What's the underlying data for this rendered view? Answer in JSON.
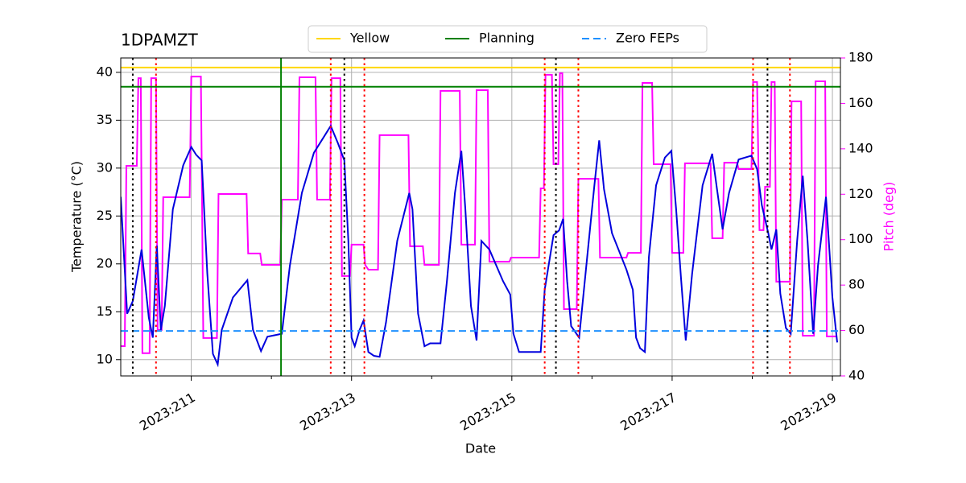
{
  "chart_data": {
    "type": "line",
    "title": "1DPAMZT",
    "xlabel": "Date",
    "ylabel": "Temperature (°C)",
    "y2label": "Pitch (deg)",
    "y2color": "#ff00ff",
    "xlim": [
      210.12,
      219.1
    ],
    "xticks": [
      {
        "value": 211,
        "label": "2023:211"
      },
      {
        "value": 213,
        "label": "2023:213"
      },
      {
        "value": 215,
        "label": "2023:215"
      },
      {
        "value": 217,
        "label": "2023:217"
      },
      {
        "value": 219,
        "label": "2023:219"
      }
    ],
    "xminorticks": [
      212,
      214,
      216,
      218
    ],
    "ylim": [
      8.3,
      41.5
    ],
    "yticks": [
      10,
      15,
      20,
      25,
      30,
      35,
      40
    ],
    "y2lim": [
      40,
      180
    ],
    "y2ticks": [
      40,
      60,
      80,
      100,
      120,
      140,
      160,
      180
    ],
    "grid": true,
    "legend": "top",
    "hlines": [
      {
        "name": "Yellow",
        "color": "#ffd700",
        "value": 40.5,
        "dash": "solid"
      },
      {
        "name": "Planning",
        "color": "#008000",
        "value": 38.5,
        "dash": "solid"
      },
      {
        "name": "Zero FEPs",
        "color": "#1e90ff",
        "value": 13.0,
        "dash": "dashed"
      }
    ],
    "vlines": [
      {
        "x": 212.12,
        "color": "#008000",
        "dash": "solid"
      },
      {
        "x": 210.27,
        "color": "#000000",
        "dash": "dotted"
      },
      {
        "x": 212.91,
        "color": "#000000",
        "dash": "dotted"
      },
      {
        "x": 215.55,
        "color": "#000000",
        "dash": "dotted"
      },
      {
        "x": 218.19,
        "color": "#000000",
        "dash": "dotted"
      },
      {
        "x": 210.56,
        "color": "#ff0000",
        "dash": "dotted"
      },
      {
        "x": 212.74,
        "color": "#ff0000",
        "dash": "dotted"
      },
      {
        "x": 213.16,
        "color": "#ff0000",
        "dash": "dotted"
      },
      {
        "x": 215.41,
        "color": "#ff0000",
        "dash": "dotted"
      },
      {
        "x": 215.83,
        "color": "#ff0000",
        "dash": "dotted"
      },
      {
        "x": 218.01,
        "color": "#ff0000",
        "dash": "dotted"
      },
      {
        "x": 218.47,
        "color": "#ff0000",
        "dash": "dotted"
      }
    ],
    "series": [
      {
        "color": "#ff00ff",
        "axis": "y2",
        "x": [
          210.12,
          210.17,
          210.19,
          210.32,
          210.34,
          210.37,
          210.39,
          210.48,
          210.5,
          210.56,
          210.58,
          210.63,
          210.65,
          210.98,
          211.0,
          211.12,
          211.15,
          211.32,
          211.34,
          211.69,
          211.71,
          211.86,
          211.88,
          212.11,
          212.13,
          212.33,
          212.35,
          212.55,
          212.57,
          212.73,
          212.75,
          212.86,
          212.88,
          212.98,
          213.0,
          213.15,
          213.17,
          213.21,
          213.33,
          213.35,
          213.71,
          213.73,
          213.89,
          213.91,
          214.09,
          214.11,
          214.35,
          214.37,
          214.54,
          214.56,
          214.7,
          214.72,
          214.97,
          214.99,
          215.34,
          215.36,
          215.4,
          215.42,
          215.5,
          215.52,
          215.58,
          215.6,
          215.63,
          215.65,
          215.81,
          215.83,
          216.08,
          216.1,
          216.43,
          216.45,
          216.61,
          216.63,
          216.75,
          216.77,
          216.98,
          217.0,
          217.14,
          217.16,
          217.48,
          217.5,
          217.63,
          217.65,
          217.81,
          217.83,
          217.99,
          218.01,
          218.06,
          218.09,
          218.14,
          218.16,
          218.22,
          218.24,
          218.28,
          218.3,
          218.47,
          218.49,
          218.61,
          218.63,
          218.77,
          218.79,
          218.91,
          218.93,
          219.06
        ],
        "values": [
          53.1,
          53.1,
          132.5,
          132.5,
          171.1,
          171.1,
          50.0,
          50.0,
          171.1,
          171.1,
          60.2,
          60.2,
          118.7,
          118.7,
          171.8,
          171.8,
          56.7,
          56.7,
          120.1,
          120.1,
          93.9,
          93.9,
          88.9,
          88.9,
          117.6,
          117.6,
          171.5,
          171.5,
          117.6,
          117.6,
          171.1,
          171.1,
          84.0,
          84.0,
          97.8,
          97.8,
          88.9,
          86.8,
          86.8,
          146.0,
          146.0,
          97.1,
          97.1,
          88.9,
          88.9,
          165.5,
          165.5,
          97.8,
          97.8,
          165.8,
          165.8,
          90.3,
          90.3,
          92.1,
          92.1,
          122.6,
          122.6,
          172.6,
          172.6,
          133.2,
          133.2,
          173.3,
          173.3,
          69.4,
          69.4,
          126.8,
          126.8,
          92.1,
          92.1,
          94.2,
          94.2,
          169.0,
          169.0,
          133.2,
          133.2,
          94.2,
          94.2,
          133.6,
          133.6,
          100.6,
          100.6,
          133.9,
          133.9,
          131.1,
          131.1,
          169.4,
          169.4,
          104.2,
          104.2,
          123.3,
          123.3,
          169.4,
          169.4,
          81.5,
          81.5,
          160.9,
          160.9,
          57.7,
          57.7,
          169.7,
          169.7,
          57.4,
          57.4
        ]
      },
      {
        "color": "#0000dd",
        "axis": "y",
        "x": [
          210.12,
          210.2,
          210.27,
          210.38,
          210.47,
          210.52,
          210.57,
          210.62,
          210.67,
          210.77,
          210.9,
          211.0,
          211.06,
          211.13,
          211.2,
          211.27,
          211.33,
          211.38,
          211.52,
          211.7,
          211.77,
          211.87,
          211.95,
          212.13,
          212.23,
          212.38,
          212.53,
          212.74,
          212.83,
          212.91,
          212.96,
          213.0,
          213.04,
          213.1,
          213.15,
          213.21,
          213.28,
          213.35,
          213.43,
          213.57,
          213.72,
          213.76,
          213.83,
          213.91,
          213.98,
          214.11,
          214.19,
          214.29,
          214.37,
          214.42,
          214.49,
          214.56,
          214.62,
          214.72,
          214.89,
          214.98,
          215.02,
          215.09,
          215.24,
          215.36,
          215.41,
          215.52,
          215.59,
          215.64,
          215.69,
          215.74,
          215.84,
          215.94,
          216.03,
          216.09,
          216.15,
          216.25,
          216.43,
          216.51,
          216.55,
          216.6,
          216.66,
          216.71,
          216.8,
          216.91,
          216.99,
          217.05,
          217.11,
          217.17,
          217.25,
          217.38,
          217.5,
          217.56,
          217.63,
          217.71,
          217.83,
          217.95,
          217.99,
          218.06,
          218.12,
          218.2,
          218.24,
          218.3,
          218.35,
          218.42,
          218.48,
          218.56,
          218.63,
          218.69,
          218.76,
          218.82,
          218.92,
          219.0,
          219.06
        ],
        "values": [
          27.0,
          14.8,
          16.1,
          21.5,
          14.4,
          12.3,
          21.9,
          13.1,
          15.6,
          25.7,
          30.3,
          32.2,
          31.4,
          30.8,
          19.0,
          10.6,
          9.5,
          13.1,
          16.5,
          18.3,
          13.1,
          10.9,
          12.4,
          12.7,
          19.8,
          27.4,
          31.6,
          34.4,
          32.6,
          30.8,
          22.4,
          12.3,
          11.4,
          13.1,
          14.1,
          10.8,
          10.4,
          10.3,
          13.9,
          22.4,
          27.4,
          25.7,
          14.8,
          11.4,
          11.7,
          11.7,
          18.2,
          27.4,
          31.8,
          25.7,
          15.6,
          12.0,
          22.4,
          21.5,
          18.2,
          16.8,
          12.7,
          10.8,
          10.8,
          10.8,
          17.3,
          23.0,
          23.5,
          24.7,
          18.2,
          13.5,
          12.3,
          20.7,
          28.2,
          32.9,
          27.8,
          23.2,
          19.4,
          17.3,
          12.3,
          11.2,
          10.8,
          20.7,
          28.2,
          31.1,
          31.8,
          25.7,
          18.6,
          12.0,
          19.0,
          28.2,
          31.5,
          27.8,
          23.6,
          27.4,
          30.9,
          31.2,
          31.3,
          29.9,
          26.1,
          23.2,
          21.5,
          23.6,
          16.9,
          13.3,
          12.7,
          22.4,
          29.2,
          22.4,
          12.7,
          19.8,
          27.0,
          16.5,
          11.8
        ]
      }
    ]
  }
}
